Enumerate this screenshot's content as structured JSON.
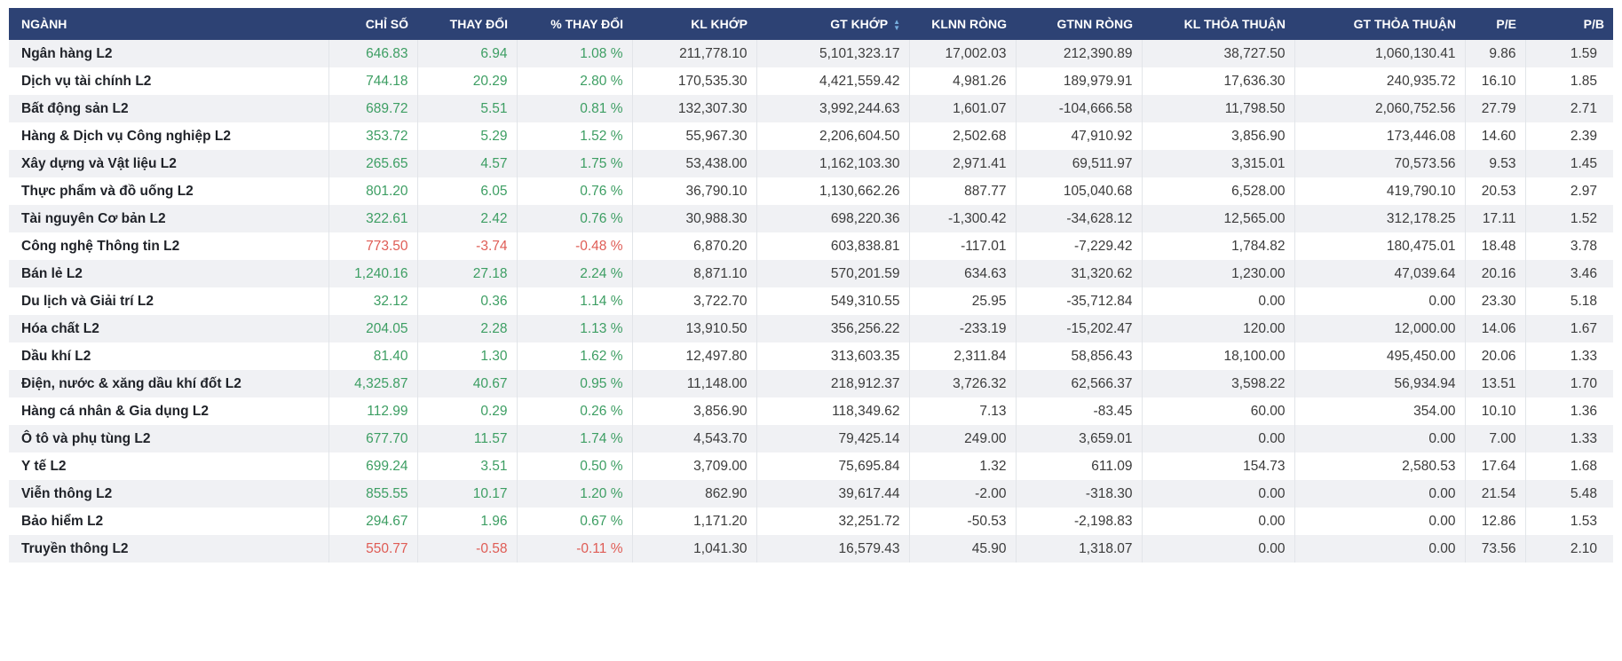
{
  "colors": {
    "header_bg": "#2d4274",
    "positive": "#3d9e63",
    "negative": "#df5c55",
    "row_alt": "#f0f1f4",
    "separator": "#e2e5e9",
    "sort_icon": "#76aede"
  },
  "sort_icon": {
    "name": "sort-arrows-icon",
    "up_glyph": "▲",
    "down_glyph": "▼"
  },
  "table": {
    "columns": [
      {
        "key": "nganh",
        "label": "NGÀNH",
        "align": "left",
        "sortable": false
      },
      {
        "key": "chi_so",
        "label": "CHỈ SỐ",
        "align": "right",
        "sortable": false
      },
      {
        "key": "thay_doi",
        "label": "THAY ĐỔI",
        "align": "right",
        "sortable": false
      },
      {
        "key": "pct_thay_doi",
        "label": "% THAY ĐỔI",
        "align": "right",
        "sortable": false
      },
      {
        "key": "kl_khop",
        "label": "KL KHỚP",
        "align": "right",
        "sortable": false
      },
      {
        "key": "gt_khop",
        "label": "GT KHỚP",
        "align": "right",
        "sortable": true
      },
      {
        "key": "klnn_rong",
        "label": "KLNN RÒNG",
        "align": "right",
        "sortable": false
      },
      {
        "key": "gtnn_rong",
        "label": "GTNN RÒNG",
        "align": "right",
        "sortable": false
      },
      {
        "key": "kl_thoa_thuan",
        "label": "KL THỎA THUẬN",
        "align": "right",
        "sortable": false
      },
      {
        "key": "gt_thoa_thuan",
        "label": "GT THỎA THUẬN",
        "align": "right",
        "sortable": false
      },
      {
        "key": "pe",
        "label": "P/E",
        "align": "right",
        "sortable": false
      },
      {
        "key": "pb",
        "label": "P/B",
        "align": "right",
        "sortable": false
      }
    ],
    "rows": [
      {
        "nganh": "Ngân hàng L2",
        "chi_so": "646.83",
        "thay_doi": "6.94",
        "pct_thay_doi": "1.08 %",
        "kl_khop": "211,778.10",
        "gt_khop": "5,101,323.17",
        "klnn_rong": "17,002.03",
        "gtnn_rong": "212,390.89",
        "kl_thoa_thuan": "38,727.50",
        "gt_thoa_thuan": "1,060,130.41",
        "pe": "9.86",
        "pb": "1.59",
        "trend": "up"
      },
      {
        "nganh": "Dịch vụ tài chính L2",
        "chi_so": "744.18",
        "thay_doi": "20.29",
        "pct_thay_doi": "2.80 %",
        "kl_khop": "170,535.30",
        "gt_khop": "4,421,559.42",
        "klnn_rong": "4,981.26",
        "gtnn_rong": "189,979.91",
        "kl_thoa_thuan": "17,636.30",
        "gt_thoa_thuan": "240,935.72",
        "pe": "16.10",
        "pb": "1.85",
        "trend": "up"
      },
      {
        "nganh": "Bất động sản L2",
        "chi_so": "689.72",
        "thay_doi": "5.51",
        "pct_thay_doi": "0.81 %",
        "kl_khop": "132,307.30",
        "gt_khop": "3,992,244.63",
        "klnn_rong": "1,601.07",
        "gtnn_rong": "-104,666.58",
        "kl_thoa_thuan": "11,798.50",
        "gt_thoa_thuan": "2,060,752.56",
        "pe": "27.79",
        "pb": "2.71",
        "trend": "up"
      },
      {
        "nganh": "Hàng & Dịch vụ Công nghiệp L2",
        "chi_so": "353.72",
        "thay_doi": "5.29",
        "pct_thay_doi": "1.52 %",
        "kl_khop": "55,967.30",
        "gt_khop": "2,206,604.50",
        "klnn_rong": "2,502.68",
        "gtnn_rong": "47,910.92",
        "kl_thoa_thuan": "3,856.90",
        "gt_thoa_thuan": "173,446.08",
        "pe": "14.60",
        "pb": "2.39",
        "trend": "up"
      },
      {
        "nganh": "Xây dựng và Vật liệu L2",
        "chi_so": "265.65",
        "thay_doi": "4.57",
        "pct_thay_doi": "1.75 %",
        "kl_khop": "53,438.00",
        "gt_khop": "1,162,103.30",
        "klnn_rong": "2,971.41",
        "gtnn_rong": "69,511.97",
        "kl_thoa_thuan": "3,315.01",
        "gt_thoa_thuan": "70,573.56",
        "pe": "9.53",
        "pb": "1.45",
        "trend": "up"
      },
      {
        "nganh": "Thực phẩm và đồ uống L2",
        "chi_so": "801.20",
        "thay_doi": "6.05",
        "pct_thay_doi": "0.76 %",
        "kl_khop": "36,790.10",
        "gt_khop": "1,130,662.26",
        "klnn_rong": "887.77",
        "gtnn_rong": "105,040.68",
        "kl_thoa_thuan": "6,528.00",
        "gt_thoa_thuan": "419,790.10",
        "pe": "20.53",
        "pb": "2.97",
        "trend": "up"
      },
      {
        "nganh": "Tài nguyên Cơ bản L2",
        "chi_so": "322.61",
        "thay_doi": "2.42",
        "pct_thay_doi": "0.76 %",
        "kl_khop": "30,988.30",
        "gt_khop": "698,220.36",
        "klnn_rong": "-1,300.42",
        "gtnn_rong": "-34,628.12",
        "kl_thoa_thuan": "12,565.00",
        "gt_thoa_thuan": "312,178.25",
        "pe": "17.11",
        "pb": "1.52",
        "trend": "up"
      },
      {
        "nganh": "Công nghệ Thông tin L2",
        "chi_so": "773.50",
        "thay_doi": "-3.74",
        "pct_thay_doi": "-0.48 %",
        "kl_khop": "6,870.20",
        "gt_khop": "603,838.81",
        "klnn_rong": "-117.01",
        "gtnn_rong": "-7,229.42",
        "kl_thoa_thuan": "1,784.82",
        "gt_thoa_thuan": "180,475.01",
        "pe": "18.48",
        "pb": "3.78",
        "trend": "down"
      },
      {
        "nganh": "Bán lẻ L2",
        "chi_so": "1,240.16",
        "thay_doi": "27.18",
        "pct_thay_doi": "2.24 %",
        "kl_khop": "8,871.10",
        "gt_khop": "570,201.59",
        "klnn_rong": "634.63",
        "gtnn_rong": "31,320.62",
        "kl_thoa_thuan": "1,230.00",
        "gt_thoa_thuan": "47,039.64",
        "pe": "20.16",
        "pb": "3.46",
        "trend": "up"
      },
      {
        "nganh": "Du lịch và Giải trí L2",
        "chi_so": "32.12",
        "thay_doi": "0.36",
        "pct_thay_doi": "1.14 %",
        "kl_khop": "3,722.70",
        "gt_khop": "549,310.55",
        "klnn_rong": "25.95",
        "gtnn_rong": "-35,712.84",
        "kl_thoa_thuan": "0.00",
        "gt_thoa_thuan": "0.00",
        "pe": "23.30",
        "pb": "5.18",
        "trend": "up"
      },
      {
        "nganh": "Hóa chất L2",
        "chi_so": "204.05",
        "thay_doi": "2.28",
        "pct_thay_doi": "1.13 %",
        "kl_khop": "13,910.50",
        "gt_khop": "356,256.22",
        "klnn_rong": "-233.19",
        "gtnn_rong": "-15,202.47",
        "kl_thoa_thuan": "120.00",
        "gt_thoa_thuan": "12,000.00",
        "pe": "14.06",
        "pb": "1.67",
        "trend": "up"
      },
      {
        "nganh": "Dầu khí L2",
        "chi_so": "81.40",
        "thay_doi": "1.30",
        "pct_thay_doi": "1.62 %",
        "kl_khop": "12,497.80",
        "gt_khop": "313,603.35",
        "klnn_rong": "2,311.84",
        "gtnn_rong": "58,856.43",
        "kl_thoa_thuan": "18,100.00",
        "gt_thoa_thuan": "495,450.00",
        "pe": "20.06",
        "pb": "1.33",
        "trend": "up"
      },
      {
        "nganh": "Điện, nước & xăng dầu khí đốt L2",
        "chi_so": "4,325.87",
        "thay_doi": "40.67",
        "pct_thay_doi": "0.95 %",
        "kl_khop": "11,148.00",
        "gt_khop": "218,912.37",
        "klnn_rong": "3,726.32",
        "gtnn_rong": "62,566.37",
        "kl_thoa_thuan": "3,598.22",
        "gt_thoa_thuan": "56,934.94",
        "pe": "13.51",
        "pb": "1.70",
        "trend": "up"
      },
      {
        "nganh": "Hàng cá nhân & Gia dụng L2",
        "chi_so": "112.99",
        "thay_doi": "0.29",
        "pct_thay_doi": "0.26 %",
        "kl_khop": "3,856.90",
        "gt_khop": "118,349.62",
        "klnn_rong": "7.13",
        "gtnn_rong": "-83.45",
        "kl_thoa_thuan": "60.00",
        "gt_thoa_thuan": "354.00",
        "pe": "10.10",
        "pb": "1.36",
        "trend": "up"
      },
      {
        "nganh": "Ô tô và phụ tùng L2",
        "chi_so": "677.70",
        "thay_doi": "11.57",
        "pct_thay_doi": "1.74 %",
        "kl_khop": "4,543.70",
        "gt_khop": "79,425.14",
        "klnn_rong": "249.00",
        "gtnn_rong": "3,659.01",
        "kl_thoa_thuan": "0.00",
        "gt_thoa_thuan": "0.00",
        "pe": "7.00",
        "pb": "1.33",
        "trend": "up"
      },
      {
        "nganh": "Y tế L2",
        "chi_so": "699.24",
        "thay_doi": "3.51",
        "pct_thay_doi": "0.50 %",
        "kl_khop": "3,709.00",
        "gt_khop": "75,695.84",
        "klnn_rong": "1.32",
        "gtnn_rong": "611.09",
        "kl_thoa_thuan": "154.73",
        "gt_thoa_thuan": "2,580.53",
        "pe": "17.64",
        "pb": "1.68",
        "trend": "up"
      },
      {
        "nganh": "Viễn thông L2",
        "chi_so": "855.55",
        "thay_doi": "10.17",
        "pct_thay_doi": "1.20 %",
        "kl_khop": "862.90",
        "gt_khop": "39,617.44",
        "klnn_rong": "-2.00",
        "gtnn_rong": "-318.30",
        "kl_thoa_thuan": "0.00",
        "gt_thoa_thuan": "0.00",
        "pe": "21.54",
        "pb": "5.48",
        "trend": "up"
      },
      {
        "nganh": "Bảo hiểm L2",
        "chi_so": "294.67",
        "thay_doi": "1.96",
        "pct_thay_doi": "0.67 %",
        "kl_khop": "1,171.20",
        "gt_khop": "32,251.72",
        "klnn_rong": "-50.53",
        "gtnn_rong": "-2,198.83",
        "kl_thoa_thuan": "0.00",
        "gt_thoa_thuan": "0.00",
        "pe": "12.86",
        "pb": "1.53",
        "trend": "up"
      },
      {
        "nganh": "Truyền thông L2",
        "chi_so": "550.77",
        "thay_doi": "-0.58",
        "pct_thay_doi": "-0.11 %",
        "kl_khop": "1,041.30",
        "gt_khop": "16,579.43",
        "klnn_rong": "45.90",
        "gtnn_rong": "1,318.07",
        "kl_thoa_thuan": "0.00",
        "gt_thoa_thuan": "0.00",
        "pe": "73.56",
        "pb": "2.10",
        "trend": "down"
      }
    ]
  }
}
